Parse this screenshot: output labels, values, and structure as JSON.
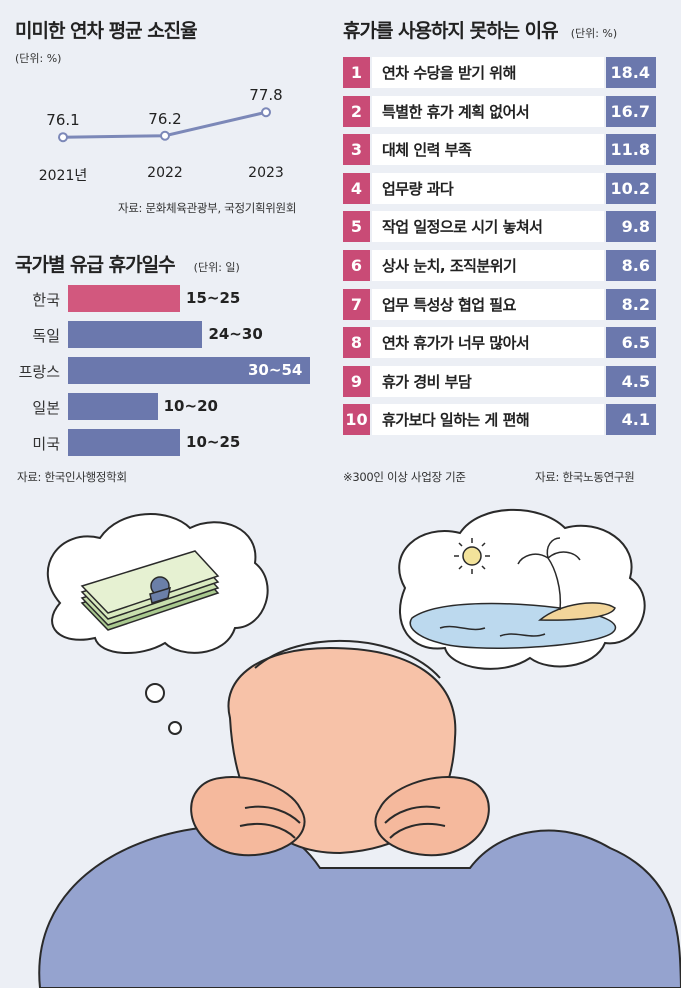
{
  "colors": {
    "background": "#eceff5",
    "korea_bar": "#d2587e",
    "other_bar": "#6b78ad",
    "rank": "#c94b76",
    "line": "#7c88b8"
  },
  "line_chart": {
    "title": "미미한 연차 평균 소진율",
    "unit": "(단위: %)",
    "source": "자료: 문화체육관광부, 국정기획위원회"
  },
  "bar_chart": {
    "title": "국가별 유급 휴가일수",
    "unit": "(단위: 일)",
    "source": "자료: 한국인사행정학회"
  },
  "reasons_table": {
    "title": "휴가를 사용하지 못하는 이유",
    "unit": "(단위: %)",
    "note": "※300인 이상 사업장 기준",
    "source": "자료: 한국노동연구원"
  },
  "chart_data": [
    {
      "type": "line",
      "title": "미미한 연차 평균 소진율",
      "unit": "%",
      "categories": [
        "2021년",
        "2022",
        "2023"
      ],
      "values": [
        76.1,
        76.2,
        77.8
      ]
    },
    {
      "type": "bar",
      "title": "국가별 유급 휴가일수",
      "unit": "일",
      "categories": [
        "한국",
        "독일",
        "프랑스",
        "일본",
        "미국"
      ],
      "ranges": [
        [
          15,
          25
        ],
        [
          24,
          30
        ],
        [
          30,
          54
        ],
        [
          10,
          20
        ],
        [
          10,
          25
        ]
      ],
      "labels": [
        "15~25",
        "24~30",
        "30~54",
        "10~20",
        "10~25"
      ]
    },
    {
      "type": "table",
      "title": "휴가를 사용하지 못하는 이유",
      "unit": "%",
      "rows": [
        {
          "rank": "1",
          "reason": "연차 수당을 받기 위해",
          "value": "18.4"
        },
        {
          "rank": "2",
          "reason": "특별한 휴가 계획 없어서",
          "value": "16.7"
        },
        {
          "rank": "3",
          "reason": "대체 인력 부족",
          "value": "11.8"
        },
        {
          "rank": "4",
          "reason": "업무량 과다",
          "value": "10.2"
        },
        {
          "rank": "5",
          "reason": "작업 일정으로 시기 놓쳐서",
          "value": "9.8"
        },
        {
          "rank": "6",
          "reason": "상사 눈치,  조직분위기",
          "value": "8.6"
        },
        {
          "rank": "7",
          "reason": "업무 특성상 협업 필요",
          "value": "8.2"
        },
        {
          "rank": "8",
          "reason": "연차 휴가가 너무 많아서",
          "value": "6.5"
        },
        {
          "rank": "9",
          "reason": "휴가 경비 부담",
          "value": "4.5"
        },
        {
          "rank": "10",
          "reason": "휴가보다 일하는 게 편해",
          "value": "4.1"
        }
      ]
    }
  ]
}
